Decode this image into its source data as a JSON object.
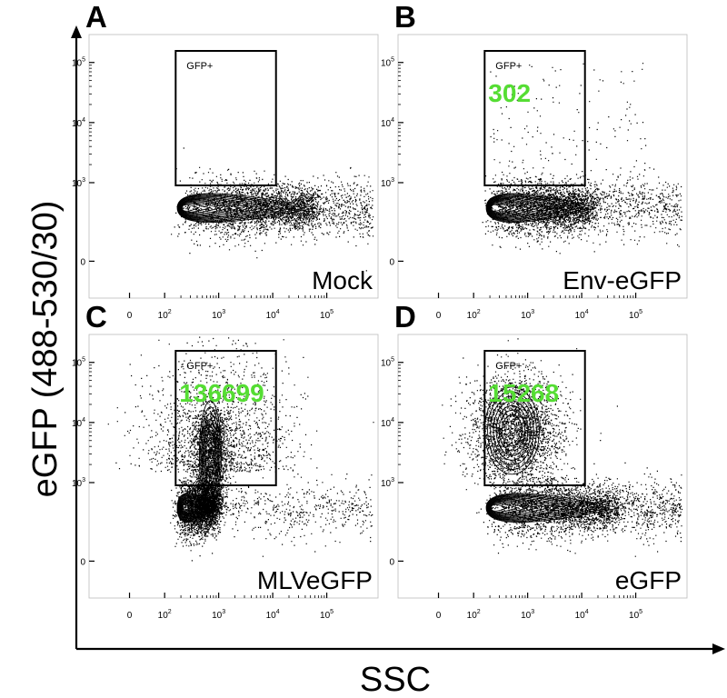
{
  "chart_data": {
    "type": "scatter",
    "xlabel": "SSC",
    "ylabel": "eGFP (488-530/30)",
    "x_scale": "biexponential",
    "y_scale": "biexponential",
    "x_ticks": [
      {
        "value": "0",
        "base": "0",
        "exp": ""
      },
      {
        "value": "100",
        "base": "10",
        "exp": "2"
      },
      {
        "value": "1000",
        "base": "10",
        "exp": "3"
      },
      {
        "value": "10000",
        "base": "10",
        "exp": "4"
      },
      {
        "value": "100000",
        "base": "10",
        "exp": "5"
      }
    ],
    "y_ticks": [
      {
        "value": "0",
        "base": "0",
        "exp": ""
      },
      {
        "value": "1000",
        "base": "10",
        "exp": "3"
      },
      {
        "value": "10000",
        "base": "10",
        "exp": "4"
      },
      {
        "value": "100000",
        "base": "10",
        "exp": "5"
      }
    ],
    "gate_color": "#000000",
    "count_color": "#55dd33",
    "panels": [
      {
        "letter": "A",
        "label": "Mock",
        "gate_name": "GFP+",
        "gate_count": "",
        "population": "negative",
        "main_x": [
          200,
          50000
        ],
        "extra": []
      },
      {
        "letter": "B",
        "label": "Env-eGFP",
        "gate_name": "GFP+",
        "gate_count": "302",
        "population": "negative",
        "main_x": [
          200,
          15000
        ],
        "extra": [
          "sparse_gfp"
        ]
      },
      {
        "letter": "C",
        "label": "MLVeGFP",
        "gate_name": "GFP+",
        "gate_count": "136699",
        "population": "negative_plus_vertical",
        "main_x": [
          200,
          800
        ],
        "extra": [
          "vertical_band",
          "diffuse_cloud"
        ]
      },
      {
        "letter": "D",
        "label": "eGFP",
        "gate_name": "GFP+",
        "gate_count": "15268",
        "population": "negative_plus_gfp",
        "main_x": [
          200,
          40000
        ],
        "extra": [
          "gfp_population"
        ]
      }
    ]
  }
}
